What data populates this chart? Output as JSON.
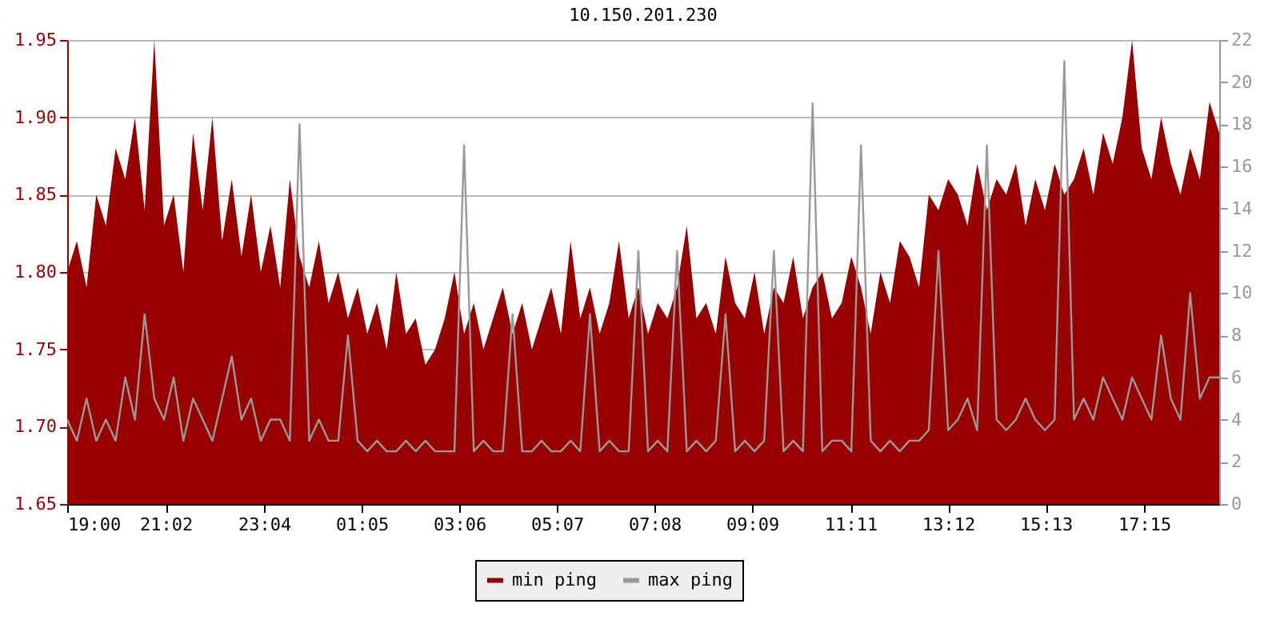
{
  "chart_data": {
    "type": "area",
    "title": "10.150.201.230",
    "x": [
      "2000-01-01T19:00",
      "2000-01-01T19:12",
      "2000-01-01T19:24",
      "2000-01-01T19:36",
      "2000-01-01T19:48",
      "2000-01-01T20:00",
      "2000-01-01T20:12",
      "2000-01-01T20:24",
      "2000-01-01T20:36",
      "2000-01-01T20:48",
      "2000-01-01T21:00",
      "2000-01-01T21:12",
      "2000-01-01T21:24",
      "2000-01-01T21:36",
      "2000-01-01T21:48",
      "2000-01-01T22:00",
      "2000-01-01T22:12",
      "2000-01-01T22:24",
      "2000-01-01T22:36",
      "2000-01-01T22:48",
      "2000-01-01T23:00",
      "2000-01-01T23:12",
      "2000-01-01T23:24",
      "2000-01-01T23:36",
      "2000-01-01T23:48",
      "2000-01-02T00:00",
      "2000-01-02T00:12",
      "2000-01-02T00:24",
      "2000-01-02T00:36",
      "2000-01-02T00:48",
      "2000-01-02T01:00",
      "2000-01-02T01:12",
      "2000-01-02T01:24",
      "2000-01-02T01:36",
      "2000-01-02T01:48",
      "2000-01-02T02:00",
      "2000-01-02T02:12",
      "2000-01-02T02:24",
      "2000-01-02T02:36",
      "2000-01-02T02:48",
      "2000-01-02T03:00",
      "2000-01-02T03:12",
      "2000-01-02T03:24",
      "2000-01-02T03:36",
      "2000-01-02T03:48",
      "2000-01-02T04:00",
      "2000-01-02T04:12",
      "2000-01-02T04:24",
      "2000-01-02T04:36",
      "2000-01-02T04:48",
      "2000-01-02T05:00",
      "2000-01-02T05:12",
      "2000-01-02T05:24",
      "2000-01-02T05:36",
      "2000-01-02T05:48",
      "2000-01-02T06:00",
      "2000-01-02T06:12",
      "2000-01-02T06:24",
      "2000-01-02T06:36",
      "2000-01-02T06:48",
      "2000-01-02T07:00",
      "2000-01-02T07:12",
      "2000-01-02T07:24",
      "2000-01-02T07:36",
      "2000-01-02T07:48",
      "2000-01-02T08:00",
      "2000-01-02T08:12",
      "2000-01-02T08:24",
      "2000-01-02T08:36",
      "2000-01-02T08:48",
      "2000-01-02T09:00",
      "2000-01-02T09:12",
      "2000-01-02T09:24",
      "2000-01-02T09:36",
      "2000-01-02T09:48",
      "2000-01-02T10:00",
      "2000-01-02T10:12",
      "2000-01-02T10:24",
      "2000-01-02T10:36",
      "2000-01-02T10:48",
      "2000-01-02T11:00",
      "2000-01-02T11:12",
      "2000-01-02T11:24",
      "2000-01-02T11:36",
      "2000-01-02T11:48",
      "2000-01-02T12:00",
      "2000-01-02T12:12",
      "2000-01-02T12:24",
      "2000-01-02T12:36",
      "2000-01-02T12:48",
      "2000-01-02T13:00",
      "2000-01-02T13:12",
      "2000-01-02T13:24",
      "2000-01-02T13:36",
      "2000-01-02T13:48",
      "2000-01-02T14:00",
      "2000-01-02T14:12",
      "2000-01-02T14:24",
      "2000-01-02T14:36",
      "2000-01-02T14:48",
      "2000-01-02T15:00",
      "2000-01-02T15:12",
      "2000-01-02T15:24",
      "2000-01-02T15:36",
      "2000-01-02T15:48",
      "2000-01-02T16:00",
      "2000-01-02T16:12",
      "2000-01-02T16:24",
      "2000-01-02T16:36",
      "2000-01-02T16:48",
      "2000-01-02T17:00",
      "2000-01-02T17:12",
      "2000-01-02T17:24",
      "2000-01-02T17:36",
      "2000-01-02T17:48",
      "2000-01-02T18:00",
      "2000-01-02T18:12",
      "2000-01-02T18:24",
      "2000-01-02T18:36",
      "2000-01-02T18:48"
    ],
    "series": [
      {
        "name": "min ping",
        "color": "#990000",
        "values": [
          1.8,
          1.82,
          1.79,
          1.85,
          1.83,
          1.88,
          1.86,
          1.9,
          1.84,
          1.95,
          1.83,
          1.85,
          1.8,
          1.89,
          1.84,
          1.9,
          1.82,
          1.86,
          1.81,
          1.85,
          1.8,
          1.83,
          1.79,
          1.86,
          1.81,
          1.79,
          1.82,
          1.78,
          1.8,
          1.77,
          1.79,
          1.76,
          1.78,
          1.75,
          1.8,
          1.76,
          1.77,
          1.74,
          1.75,
          1.77,
          1.8,
          1.76,
          1.78,
          1.75,
          1.77,
          1.79,
          1.76,
          1.78,
          1.75,
          1.77,
          1.79,
          1.76,
          1.82,
          1.77,
          1.79,
          1.76,
          1.78,
          1.82,
          1.77,
          1.79,
          1.76,
          1.78,
          1.77,
          1.79,
          1.83,
          1.77,
          1.78,
          1.76,
          1.81,
          1.78,
          1.77,
          1.8,
          1.76,
          1.79,
          1.78,
          1.81,
          1.77,
          1.79,
          1.8,
          1.77,
          1.78,
          1.81,
          1.79,
          1.76,
          1.8,
          1.78,
          1.82,
          1.81,
          1.79,
          1.85,
          1.84,
          1.86,
          1.85,
          1.83,
          1.87,
          1.84,
          1.86,
          1.85,
          1.87,
          1.83,
          1.86,
          1.84,
          1.87,
          1.85,
          1.86,
          1.88,
          1.85,
          1.89,
          1.87,
          1.9,
          1.95,
          1.88,
          1.86,
          1.9,
          1.87,
          1.85,
          1.88,
          1.86,
          1.91,
          1.89
        ]
      },
      {
        "name": "max ping",
        "type": "line",
        "axis": "y2",
        "color": "#999999",
        "values": [
          4,
          3,
          5,
          3,
          4,
          3,
          6,
          4,
          9,
          5,
          4,
          6,
          3,
          5,
          4,
          3,
          5,
          7,
          4,
          5,
          3,
          4,
          4,
          3,
          18,
          3,
          4,
          3,
          3,
          8,
          3,
          2.5,
          3,
          2.5,
          2.5,
          3,
          2.5,
          3,
          2.5,
          2.5,
          2.5,
          17,
          2.5,
          3,
          2.5,
          2.5,
          9,
          2.5,
          2.5,
          3,
          2.5,
          2.5,
          3,
          2.5,
          9,
          2.5,
          3,
          2.5,
          2.5,
          12,
          2.5,
          3,
          2.5,
          12,
          2.5,
          3,
          2.5,
          3,
          9,
          2.5,
          3,
          2.5,
          3,
          12,
          2.5,
          3,
          2.5,
          19,
          2.5,
          3,
          3,
          2.5,
          17,
          3,
          2.5,
          3,
          2.5,
          3,
          3,
          3.5,
          12,
          3.5,
          4,
          5,
          3.5,
          17,
          4,
          3.5,
          4,
          5,
          4,
          3.5,
          4,
          21,
          4,
          5,
          4,
          6,
          5,
          4,
          6,
          5,
          4,
          8,
          5,
          4,
          10,
          5,
          6,
          6
        ]
      }
    ],
    "xlim": [
      "2000-01-01T19:00",
      "2000-01-02T18:48"
    ],
    "xticks": [
      {
        "value": "2000-01-01T19:00",
        "label": "19:00"
      },
      {
        "value": "2000-01-01T21:02",
        "label": "21:02"
      },
      {
        "value": "2000-01-01T23:04",
        "label": "23:04"
      },
      {
        "value": "2000-01-02T01:05",
        "label": "01:05"
      },
      {
        "value": "2000-01-02T03:06",
        "label": "03:06"
      },
      {
        "value": "2000-01-02T05:07",
        "label": "05:07"
      },
      {
        "value": "2000-01-02T07:08",
        "label": "07:08"
      },
      {
        "value": "2000-01-02T09:09",
        "label": "09:09"
      },
      {
        "value": "2000-01-02T11:11",
        "label": "11:11"
      },
      {
        "value": "2000-01-02T13:12",
        "label": "13:12"
      },
      {
        "value": "2000-01-02T15:13",
        "label": "15:13"
      },
      {
        "value": "2000-01-02T17:15",
        "label": "17:15"
      }
    ],
    "ylim": [
      1.65,
      1.95
    ],
    "yticks": [
      {
        "value": 1.65,
        "label": "1.65"
      },
      {
        "value": 1.7,
        "label": "1.70"
      },
      {
        "value": 1.75,
        "label": "1.75"
      },
      {
        "value": 1.8,
        "label": "1.80"
      },
      {
        "value": 1.85,
        "label": "1.85"
      },
      {
        "value": 1.9,
        "label": "1.90"
      },
      {
        "value": 1.95,
        "label": "1.95"
      }
    ],
    "y2lim": [
      0,
      22
    ],
    "y2ticks": [
      0,
      2,
      4,
      6,
      8,
      10,
      12,
      14,
      16,
      18,
      20,
      22
    ],
    "grid": "y",
    "legend": "bottom"
  }
}
